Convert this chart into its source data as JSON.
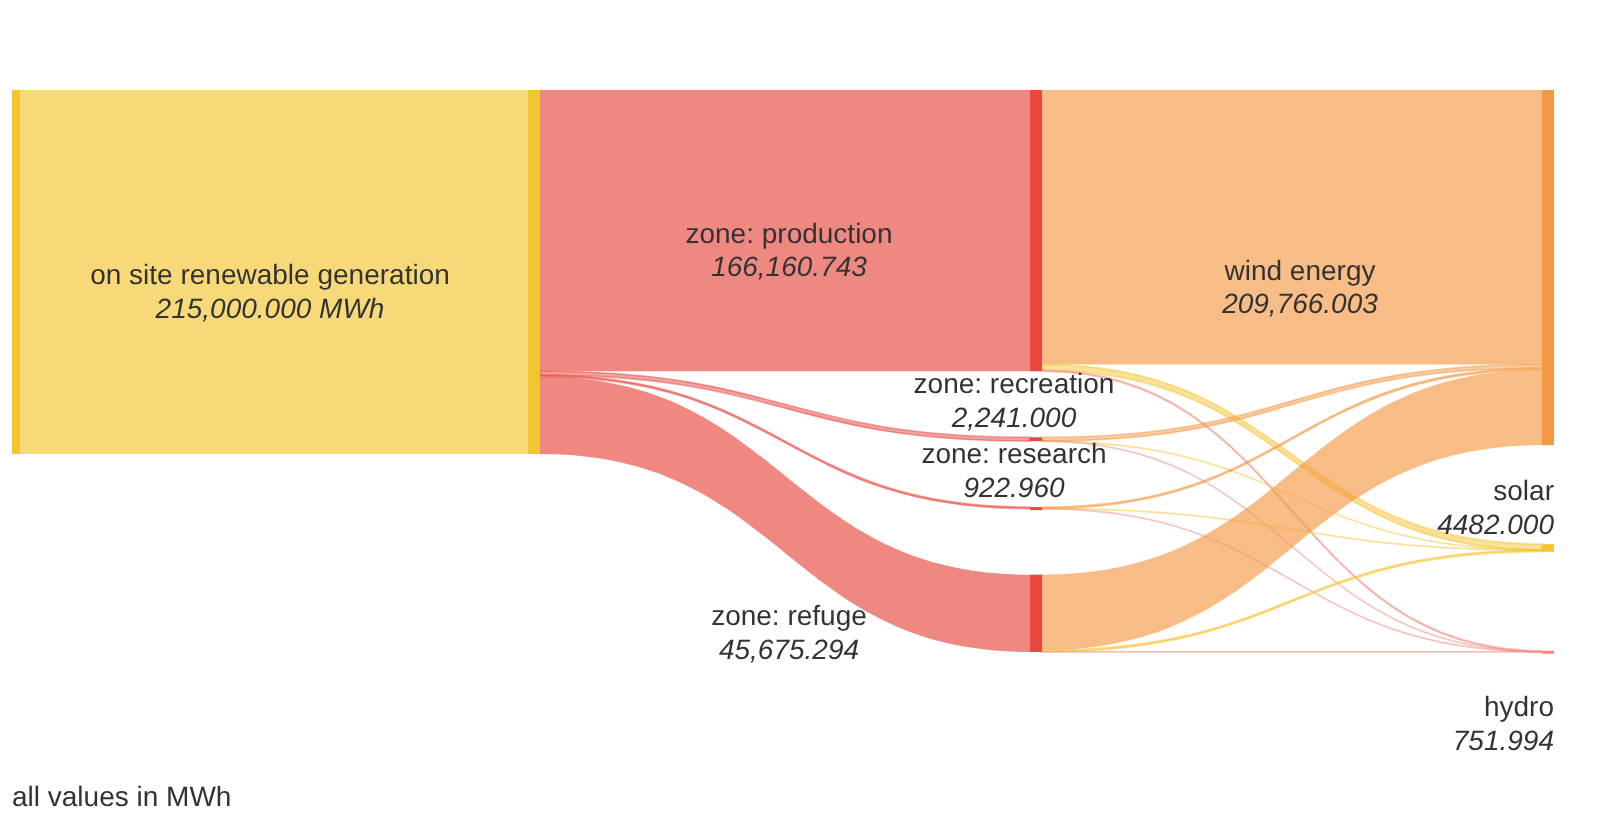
{
  "chart_data": {
    "type": "other",
    "categories": [
      "on site renewable generation",
      "zone: production",
      "zone: recreation",
      "zone: research",
      "zone: refuge",
      "wind energy",
      "solar",
      "hydro"
    ],
    "values": [
      215000,
      166160.743,
      2241,
      922.96,
      45675.294,
      209766.003,
      4482,
      751.994
    ],
    "value_labels": [
      "215,000.000 MWh",
      "166,160.743",
      "2,241.000",
      "922.960",
      "45,675.294",
      "209,766.003",
      "4482.000",
      "751.994"
    ],
    "colors": [
      "#f5c431",
      "#e8483f",
      "#e8483f",
      "#e8483f",
      "#e8483f",
      "#f49a45",
      "#f5c431",
      "#f08a7d"
    ],
    "annotations": [
      "all values in MWh"
    ]
  }
}
